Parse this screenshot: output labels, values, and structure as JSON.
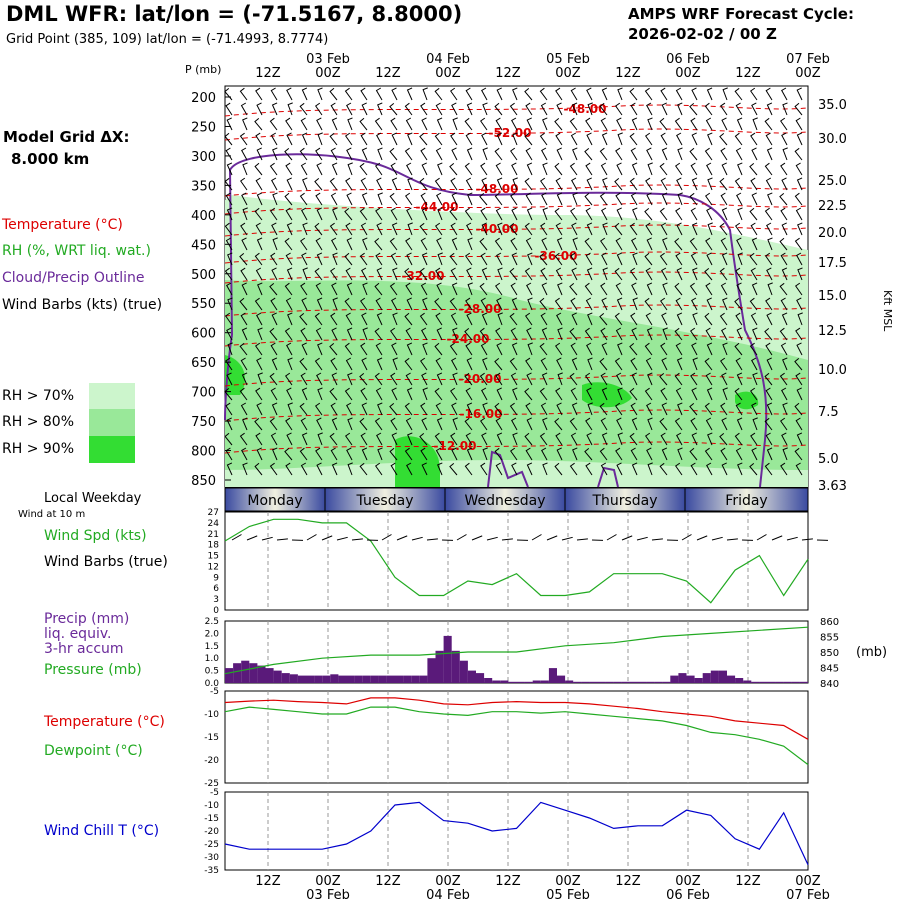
{
  "header": {
    "title": "DML WFR:  lat/lon = (-71.5167, 8.8000)",
    "grid_point": "Grid Point (385, 109) lat/lon = (-71.4993, 8.7774)",
    "forecast_line1": "AMPS WRF Forecast Cycle:",
    "forecast_line2": "2026-02-02 / 00  Z",
    "model_grid_label": "Model Grid ΔX:",
    "model_grid_value": "8.000 km"
  },
  "colors": {
    "temperature": "#dd0000",
    "rh": "#22aa22",
    "cloud": "#6a2a9a",
    "wind_chill": "#0000cc",
    "rh70": "#ccf5cc",
    "rh80": "#99e899",
    "rh90": "#33dd33",
    "precip_bar": "#5a1a7a"
  },
  "legend": {
    "temperature": "Temperature (°C)",
    "rh": "RH (%, WRT liq. wat.)",
    "cloud": "Cloud/Precip Outline",
    "wind_barbs": "Wind Barbs (kts) (true)",
    "rh70": "RH > 70%",
    "rh80": "RH > 80%",
    "rh90": "RH > 90%"
  },
  "time_axis": {
    "top_labels": [
      "12Z",
      "00Z",
      "12Z",
      "00Z",
      "12Z",
      "00Z",
      "12Z",
      "00Z",
      "12Z",
      "00Z"
    ],
    "date_labels": [
      "03 Feb",
      "04 Feb",
      "05 Feb",
      "06 Feb",
      "07 Feb"
    ],
    "bottom_labels": [
      "12Z",
      "00Z",
      "12Z",
      "00Z",
      "12Z",
      "00Z",
      "12Z",
      "00Z",
      "12Z",
      "00Z"
    ]
  },
  "weekday_bar": {
    "title": "Local Weekday",
    "subtitle": "Wind at 10 m",
    "days": [
      "Monday",
      "Tuesday",
      "Wednesday",
      "Thursday",
      "Friday"
    ]
  },
  "chart_data": [
    {
      "type": "heatmap",
      "name": "cross-section",
      "ylabel": "P (mb)",
      "y2label": "Kft MSL",
      "pressure_ticks": [
        200,
        250,
        300,
        350,
        400,
        450,
        500,
        550,
        600,
        650,
        700,
        750,
        800,
        850
      ],
      "height_ticks": [
        "35.0",
        "30.0",
        "25.0",
        "22.5",
        "20.0",
        "17.5",
        "15.0",
        "12.5",
        "10.0",
        "7.5",
        "5.0",
        "3.63"
      ],
      "temperature_contours": [
        {
          "label": "-48.00"
        },
        {
          "label": "-52.00"
        },
        {
          "label": "-48.00"
        },
        {
          "label": "-44.00"
        },
        {
          "label": "-40.00"
        },
        {
          "label": "-36.00"
        },
        {
          "label": "-32.00"
        },
        {
          "label": "-28.00"
        },
        {
          "label": "-24.00"
        },
        {
          "label": "-20.00"
        },
        {
          "label": "-16.00"
        },
        {
          "label": "-12.00"
        }
      ]
    },
    {
      "type": "line",
      "name": "wind-speed",
      "ylabel": "Wind Spd (kts)",
      "ylabel2": "Wind Barbs (true)",
      "ylim": [
        0,
        27
      ],
      "yticks": [
        0,
        3,
        6,
        9,
        12,
        15,
        18,
        21,
        24,
        27
      ],
      "hours": [
        0,
        6,
        12,
        18,
        24,
        30,
        36,
        42,
        48,
        54,
        60,
        66,
        72,
        78,
        84,
        90,
        96,
        102,
        108,
        114,
        120,
        126,
        132,
        138,
        144
      ],
      "values": [
        19,
        23,
        25,
        25,
        24,
        24,
        19,
        9,
        4,
        4,
        8,
        7,
        10,
        4,
        4,
        5,
        10,
        10,
        10,
        8,
        2,
        11,
        15,
        4,
        14
      ]
    },
    {
      "type": "bar",
      "name": "precip-pressure",
      "ylabel": "Precip (mm)",
      "ylabel2": "liq. equiv.",
      "ylabel3": "3-hr accum",
      "ylabel4": "Pressure (mb)",
      "ylim": [
        0,
        2.5
      ],
      "yticks": [
        "0.0",
        "0.5",
        "1.0",
        "1.5",
        "2.0",
        "2.5"
      ],
      "y2lim": [
        840,
        860
      ],
      "y2ticks": [
        "840",
        "845",
        "850",
        "855",
        "860"
      ],
      "y2unit": "(mb)",
      "precip": [
        0.6,
        0.8,
        0.9,
        0.8,
        0.7,
        0.6,
        0.5,
        0.4,
        0.35,
        0.3,
        0.3,
        0.3,
        0.3,
        0.35,
        0.3,
        0.3,
        0.3,
        0.3,
        0.3,
        0.3,
        0.3,
        0.3,
        0.3,
        0.3,
        0.3,
        1.0,
        1.3,
        1.9,
        1.3,
        0.9,
        0.5,
        0.4,
        0.2,
        0.1,
        0.1,
        0.05,
        0.05,
        0.05,
        0.1,
        0.1,
        0.6,
        0.3,
        0.1,
        0.05,
        0.05,
        0.05,
        0.05,
        0.05,
        0.05,
        0.05,
        0.05,
        0.05,
        0.05,
        0.05,
        0.05,
        0.3,
        0.4,
        0.3,
        0.2,
        0.4,
        0.5,
        0.5,
        0.3,
        0.2,
        0.1,
        0.05,
        0.05,
        0.05,
        0.05,
        0.05,
        0.05,
        0.05
      ],
      "pressure_hours": [
        0,
        12,
        24,
        36,
        48,
        60,
        72,
        84,
        96,
        108,
        120,
        132,
        144
      ],
      "pressure": [
        843,
        846,
        848,
        849,
        849,
        850,
        850,
        852,
        853,
        855,
        856,
        857,
        858
      ]
    },
    {
      "type": "line",
      "name": "temperature-dewpoint",
      "ylabel": "Temperature (°C)",
      "ylabel2": "Dewpoint (°C)",
      "ylim": [
        -25,
        -5
      ],
      "yticks": [
        -25,
        -20,
        -15,
        -10,
        -5
      ],
      "hours": [
        0,
        6,
        12,
        18,
        24,
        30,
        36,
        42,
        48,
        54,
        60,
        66,
        72,
        78,
        84,
        90,
        96,
        102,
        108,
        114,
        120,
        126,
        132,
        138,
        144
      ],
      "series": [
        {
          "name": "Temperature (°C)",
          "values": [
            -7.5,
            -7.2,
            -7.0,
            -7.3,
            -7.5,
            -7.8,
            -6.5,
            -6.5,
            -7.0,
            -7.8,
            -8.0,
            -7.5,
            -7.3,
            -7.5,
            -7.5,
            -7.8,
            -8.3,
            -8.8,
            -9.5,
            -10.0,
            -10.5,
            -11.5,
            -12.0,
            -12.5,
            -15.5
          ]
        },
        {
          "name": "Dewpoint (°C)",
          "values": [
            -9.5,
            -8.5,
            -9.0,
            -9.5,
            -10.0,
            -10.0,
            -8.5,
            -8.5,
            -9.5,
            -10.0,
            -10.3,
            -9.5,
            -9.5,
            -9.8,
            -9.5,
            -10.0,
            -10.5,
            -11.0,
            -11.5,
            -12.5,
            -14.0,
            -14.5,
            -15.5,
            -17.0,
            -21.0
          ]
        }
      ]
    },
    {
      "type": "line",
      "name": "wind-chill",
      "ylabel": "Wind Chill T (°C)",
      "ylim": [
        -35,
        -5
      ],
      "yticks": [
        -35,
        -30,
        -25,
        -20,
        -15,
        -10,
        -5
      ],
      "hours": [
        0,
        6,
        12,
        18,
        24,
        30,
        36,
        42,
        48,
        54,
        60,
        66,
        72,
        78,
        84,
        90,
        96,
        102,
        108,
        114,
        120,
        126,
        132,
        138,
        144
      ],
      "values": [
        -25,
        -27,
        -27,
        -27,
        -27,
        -25,
        -20,
        -10,
        -9,
        -16,
        -17,
        -20,
        -19,
        -9,
        -12,
        -15,
        -19,
        -18,
        -18,
        -12,
        -14,
        -23,
        -27,
        -13,
        -33
      ]
    }
  ]
}
